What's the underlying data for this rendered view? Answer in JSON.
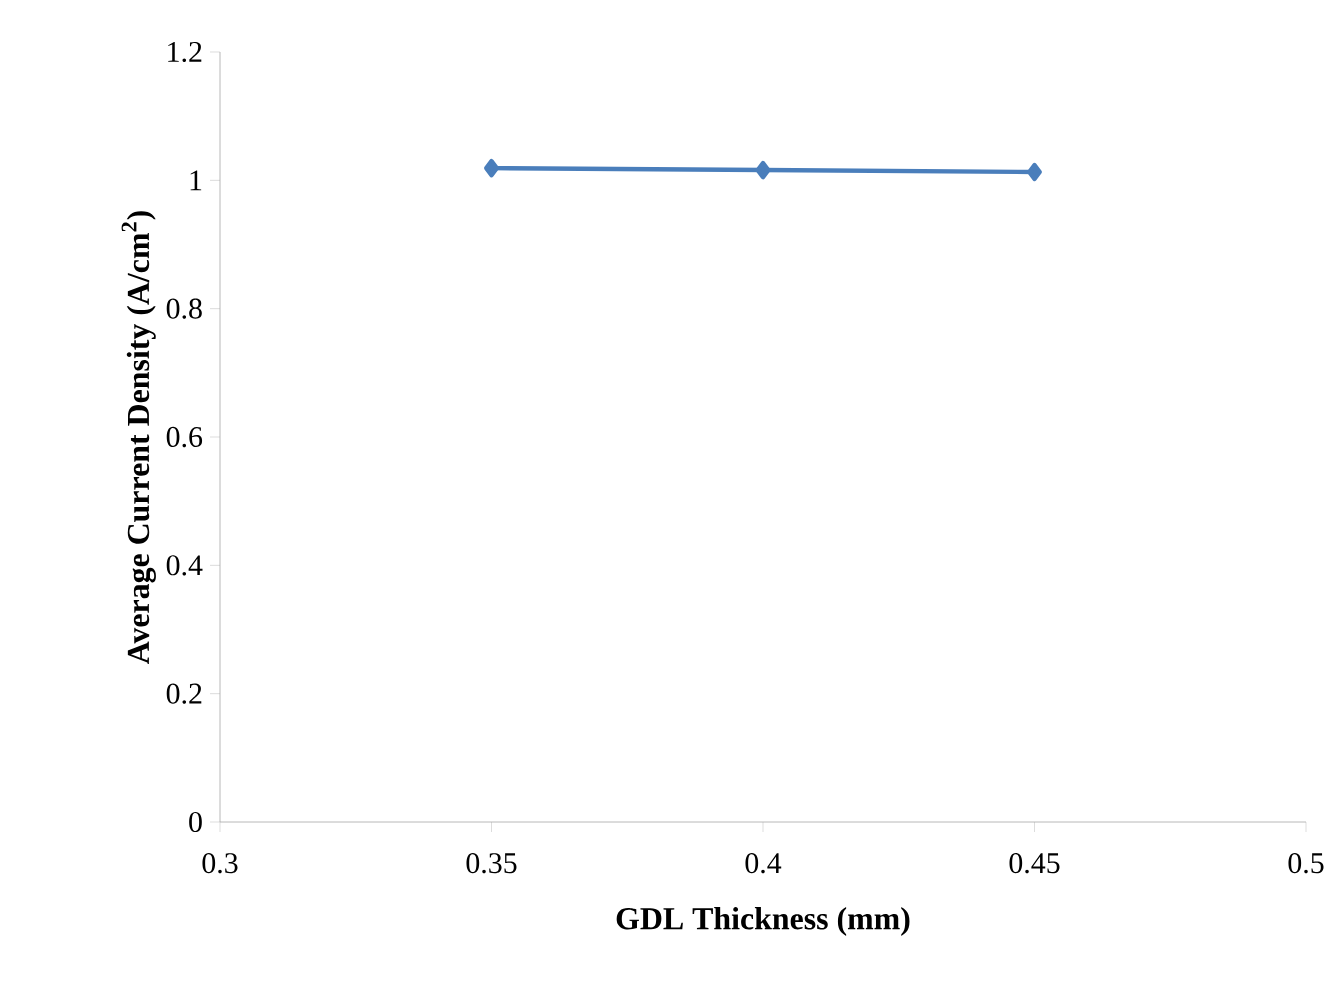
{
  "chart_data": {
    "type": "line",
    "xlabel": "GDL Thickness (mm)",
    "ylabel": "Average Current Density (A/cm$^{2}$)",
    "x": [
      0.35,
      0.4,
      0.45
    ],
    "series": [
      {
        "color": "#4a7ebb",
        "values": [
          1.019,
          1.016,
          1.013
        ]
      }
    ],
    "xlim": [
      0.3,
      0.5
    ],
    "xticks": [
      0.3,
      0.35,
      0.4,
      0.45,
      0.5
    ],
    "ylim": [
      0,
      1.2
    ],
    "yticks": [
      0,
      0.2,
      0.4,
      0.6,
      0.8,
      1,
      1.2
    ],
    "marker": "diamond",
    "line_style": "solid",
    "grid": false
  }
}
